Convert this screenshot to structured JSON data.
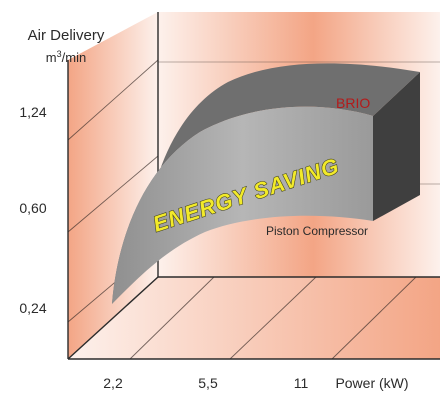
{
  "chart_data": {
    "type": "area",
    "title": "",
    "ylabel_line1": "Air Delivery",
    "ylabel_unit_base": "m",
    "ylabel_unit_sup": "3",
    "ylabel_unit_rest": "/min",
    "xlabel": "Power (kW)",
    "x_ticks": [
      "2,2",
      "5,5",
      "11"
    ],
    "y_ticks": [
      "1,24",
      "0,60",
      "0,24"
    ],
    "series": [
      {
        "name": "BRIO",
        "x": [
          2.2,
          5.5,
          11
        ],
        "y": [
          0.24,
          1.0,
          1.24
        ]
      },
      {
        "name": "Piston Compressor",
        "x": [
          2.2,
          5.5,
          11
        ],
        "y": [
          0.24,
          0.45,
          0.6
        ]
      }
    ],
    "annotations": [
      "ENERGY SAVING"
    ],
    "grid": true,
    "colors": {
      "wall_warm": "#f3a585",
      "wall_light": "#fdf1ec",
      "band_top": "#6f6f6f",
      "band_face": "#a9a9a9",
      "band_side": "#3f3f3f",
      "brio_label": "#b31b1b",
      "energy_text": "#f2ea2a",
      "energy_outline": "#3a3a1a",
      "axis": "#2b2b2b"
    }
  }
}
